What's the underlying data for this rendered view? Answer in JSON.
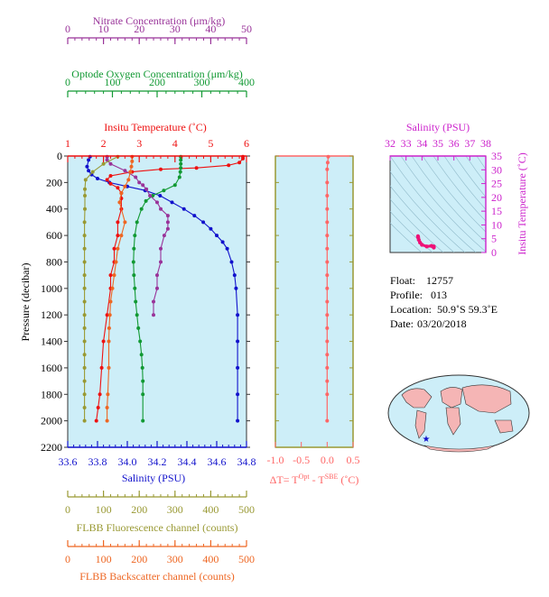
{
  "chart_data": {
    "type": "line",
    "main_profile": {
      "yaxis": {
        "label": "Pressure (decibar)",
        "range": [
          0,
          2200
        ],
        "ticks": [
          0,
          200,
          400,
          600,
          800,
          1000,
          1200,
          1400,
          1600,
          1800,
          2000,
          2200
        ],
        "reversed": true
      },
      "axes": {
        "nitrate": {
          "title": "Nitrate Concentration (μm/kg)",
          "color": "#993399",
          "range": [
            0,
            50
          ],
          "ticks": [
            0,
            10,
            20,
            30,
            40,
            50
          ]
        },
        "oxygen": {
          "title": "Optode Oxygen Concentration (μm/kg)",
          "color": "#119933",
          "range": [
            0,
            400
          ],
          "ticks": [
            0,
            100,
            200,
            300,
            400
          ]
        },
        "temperature": {
          "title": "Insitu Temperature (˚C)",
          "color": "#ee1111",
          "range": [
            1,
            6
          ],
          "ticks": [
            1,
            2,
            3,
            4,
            5,
            6
          ]
        },
        "salinity": {
          "title": "Salinity (PSU)",
          "color": "#1111cc",
          "range": [
            33.6,
            34.8
          ],
          "ticks": [
            "33.6",
            "33.8",
            "34.0",
            "34.2",
            "34.4",
            "34.6",
            "34.8"
          ]
        },
        "fluorescence": {
          "title": "FLBB Fluorescence channel (counts)",
          "color": "#999933",
          "range": [
            0,
            500
          ],
          "ticks": [
            0,
            100,
            200,
            300,
            400,
            500
          ]
        },
        "backscatter": {
          "title": "FLBB Backscatter channel (counts)",
          "color": "#ee6622",
          "range": [
            0,
            500
          ],
          "ticks": [
            0,
            100,
            200,
            300,
            400,
            500
          ]
        }
      },
      "series": [
        {
          "name": "Salinity",
          "axis": "salinity",
          "color": "#1111cc",
          "x": [
            33.75,
            33.74,
            33.73,
            33.74,
            33.76,
            33.8,
            33.88,
            34.0,
            34.12,
            34.22,
            34.3,
            34.38,
            34.45,
            34.51,
            34.56,
            34.6,
            34.64,
            34.67,
            34.7,
            34.72,
            34.73,
            34.74,
            34.74,
            34.74,
            34.74,
            34.74
          ],
          "y": [
            5,
            30,
            80,
            110,
            140,
            170,
            200,
            230,
            260,
            300,
            350,
            400,
            450,
            500,
            550,
            600,
            650,
            700,
            800,
            900,
            1000,
            1200,
            1400,
            1600,
            1800,
            2000
          ]
        },
        {
          "name": "Temperature",
          "axis": "temperature",
          "color": "#ee1111",
          "x": [
            5.9,
            5.9,
            5.8,
            5.5,
            4.6,
            3.6,
            2.8,
            2.2,
            2.1,
            2.2,
            2.4,
            2.5,
            2.5,
            2.5,
            2.4,
            2.4,
            2.3,
            2.3,
            2.2,
            2.2,
            2.1,
            2.0,
            1.95,
            1.9,
            1.85,
            1.8
          ],
          "y": [
            5,
            20,
            50,
            70,
            90,
            100,
            120,
            150,
            180,
            210,
            240,
            280,
            320,
            400,
            500,
            600,
            700,
            800,
            900,
            1000,
            1200,
            1400,
            1600,
            1800,
            1900,
            2000
          ]
        },
        {
          "name": "Oxygen",
          "axis": "oxygen",
          "color": "#119933",
          "x": [
            253,
            253,
            253,
            253,
            252,
            250,
            240,
            215,
            190,
            175,
            165,
            155,
            150,
            148,
            147,
            148,
            150,
            152,
            155,
            158,
            162,
            165,
            167,
            168,
            168,
            168
          ],
          "y": [
            5,
            30,
            60,
            90,
            120,
            160,
            220,
            260,
            300,
            340,
            400,
            500,
            600,
            700,
            800,
            900,
            1000,
            1100,
            1200,
            1300,
            1400,
            1500,
            1600,
            1700,
            1800,
            2000
          ]
        },
        {
          "name": "Nitrate",
          "axis": "nitrate",
          "color": "#993399",
          "x": [
            11,
            11,
            12,
            16,
            19,
            20,
            21,
            22,
            23,
            25,
            26,
            28,
            28,
            28,
            27,
            26,
            26,
            25,
            25,
            24,
            24
          ],
          "y": [
            5,
            30,
            60,
            110,
            160,
            200,
            220,
            250,
            300,
            350,
            400,
            450,
            500,
            550,
            600,
            700,
            800,
            900,
            1000,
            1100,
            1200
          ]
        },
        {
          "name": "Fluorescence",
          "axis": "fluorescence",
          "color": "#999933",
          "x": [
            140,
            100,
            70,
            50,
            48,
            48,
            48,
            47,
            47,
            47,
            47,
            47,
            47,
            47,
            47,
            47,
            47,
            47,
            47,
            47,
            47,
            47,
            47
          ],
          "y": [
            5,
            60,
            120,
            180,
            250,
            300,
            400,
            500,
            600,
            700,
            800,
            900,
            1000,
            1100,
            1200,
            1300,
            1400,
            1500,
            1600,
            1700,
            1800,
            1900,
            2000
          ]
        },
        {
          "name": "Backscatter",
          "axis": "backscatter",
          "color": "#ee6622",
          "x": [
            180,
            180,
            178,
            175,
            170,
            160,
            150,
            145,
            160,
            150,
            140,
            135,
            130,
            125,
            120,
            118,
            116,
            115,
            115,
            112,
            110,
            110
          ],
          "y": [
            5,
            40,
            80,
            120,
            180,
            230,
            280,
            350,
            500,
            600,
            700,
            800,
            900,
            1000,
            1100,
            1200,
            1300,
            1400,
            1600,
            1800,
            1900,
            2000
          ]
        }
      ]
    },
    "delta_t": {
      "xlabel": "ΔT= T",
      "xlabel_sup1": "Opt",
      "xlabel_mid": " - T",
      "xlabel_sup2": "SBE",
      "xlabel_unit": " (˚C)",
      "range": [
        -1.0,
        0.5
      ],
      "ticks": [
        "-1.0",
        "-0.5",
        "0.0",
        "0.5"
      ],
      "color": "#ff6666",
      "x": [
        0.02,
        0.01,
        0.0,
        0.0,
        0.0,
        0.0,
        0.0,
        0.0,
        0.0,
        0.0,
        0.0,
        0.0,
        0.0,
        0.0,
        0.0,
        0.0,
        0.0,
        0.0,
        0.0,
        0.0,
        0.0
      ],
      "y": [
        5,
        50,
        100,
        200,
        300,
        400,
        500,
        600,
        700,
        800,
        900,
        1000,
        1100,
        1200,
        1300,
        1400,
        1500,
        1600,
        1700,
        1800,
        2000
      ]
    },
    "ts_diagram": {
      "xlabel": "Salinity (PSU)",
      "ylabel": "Insitu Temperature (˚C)",
      "xticks": [
        32,
        33,
        34,
        35,
        36,
        37,
        38
      ],
      "yticks": [
        0,
        5,
        10,
        15,
        20,
        25,
        30,
        35
      ],
      "color": "#ee1177",
      "x": [
        33.75,
        33.76,
        33.8,
        33.88,
        34.0,
        34.3,
        34.6,
        34.74,
        34.74
      ],
      "y": [
        5.9,
        5.5,
        4.6,
        3.6,
        2.8,
        2.2,
        2.4,
        2.2,
        1.8
      ]
    },
    "map": {
      "marker": "★",
      "marker_lat": -50.9,
      "marker_lon": 59.3
    }
  },
  "info": {
    "float_label": "Float:",
    "float_value": "12757",
    "profile_label": "Profile:",
    "profile_value": "013",
    "location_label": "Location:",
    "location_value": "50.9˚S  59.3˚E",
    "date_label": "Date:",
    "date_value": "03/20/2018"
  }
}
